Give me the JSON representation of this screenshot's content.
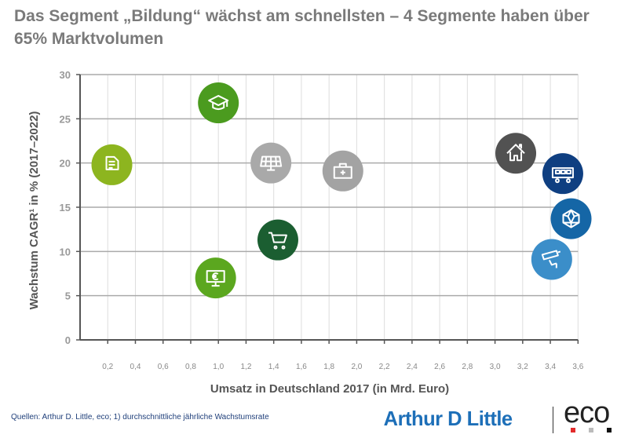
{
  "title": "Das Segment „Bildung“ wächst am schnellsten – 4 Segmente haben über 65% Marktvolumen",
  "chart_data": {
    "type": "scatter",
    "title": "Das Segment „Bildung“ wächst am schnellsten – 4 Segmente haben über 65% Marktvolumen",
    "xlabel": "Umsatz in Deutschland 2017 (in Mrd. Euro)",
    "ylabel": "Wachstum CAGR¹ in % (2017–2022)",
    "xlim": [
      0,
      3.6
    ],
    "ylim": [
      0,
      30
    ],
    "grid": true,
    "xticks": [
      "0,2",
      "0,4",
      "0,6",
      "0,8",
      "1,0",
      "1,2",
      "1,4",
      "1,6",
      "1,8",
      "2,0",
      "2,2",
      "2,4",
      "2,6",
      "2,8",
      "3,0",
      "3,2",
      "3,4",
      "3,6"
    ],
    "yticks": [
      "0",
      "5",
      "10",
      "15",
      "20",
      "25",
      "30"
    ],
    "points": [
      {
        "icon": "document-cursor-icon",
        "x": 0.23,
        "y": 19.8,
        "color": "#8db51f"
      },
      {
        "icon": "graduation-cap-icon",
        "x": 1.0,
        "y": 26.8,
        "color": "#4b9b1f"
      },
      {
        "icon": "solar-panel-icon",
        "x": 1.38,
        "y": 20.0,
        "color": "#a9a9a9"
      },
      {
        "icon": "shopping-cart-icon",
        "x": 1.43,
        "y": 11.3,
        "color": "#1b5e31"
      },
      {
        "icon": "monitor-euro-icon",
        "x": 0.98,
        "y": 7.0,
        "color": "#5ba71f"
      },
      {
        "icon": "medical-kit-icon",
        "x": 1.9,
        "y": 19.1,
        "color": "#a3a3a3"
      },
      {
        "icon": "house-icon",
        "x": 3.15,
        "y": 21.1,
        "color": "#525252"
      },
      {
        "icon": "bus-icon",
        "x": 3.49,
        "y": 18.8,
        "color": "#0f3f81"
      },
      {
        "icon": "network-icon",
        "x": 3.55,
        "y": 13.7,
        "color": "#1566a6"
      },
      {
        "icon": "security-camera-icon",
        "x": 3.41,
        "y": 9.1,
        "color": "#3b8ec9"
      }
    ]
  },
  "footer": {
    "source": "Quellen: Arthur D. Little, eco; 1) durchschnittliche jährliche Wachstumsrate",
    "logo_adl": "Arthur D Little",
    "logo_eco": "eco"
  }
}
